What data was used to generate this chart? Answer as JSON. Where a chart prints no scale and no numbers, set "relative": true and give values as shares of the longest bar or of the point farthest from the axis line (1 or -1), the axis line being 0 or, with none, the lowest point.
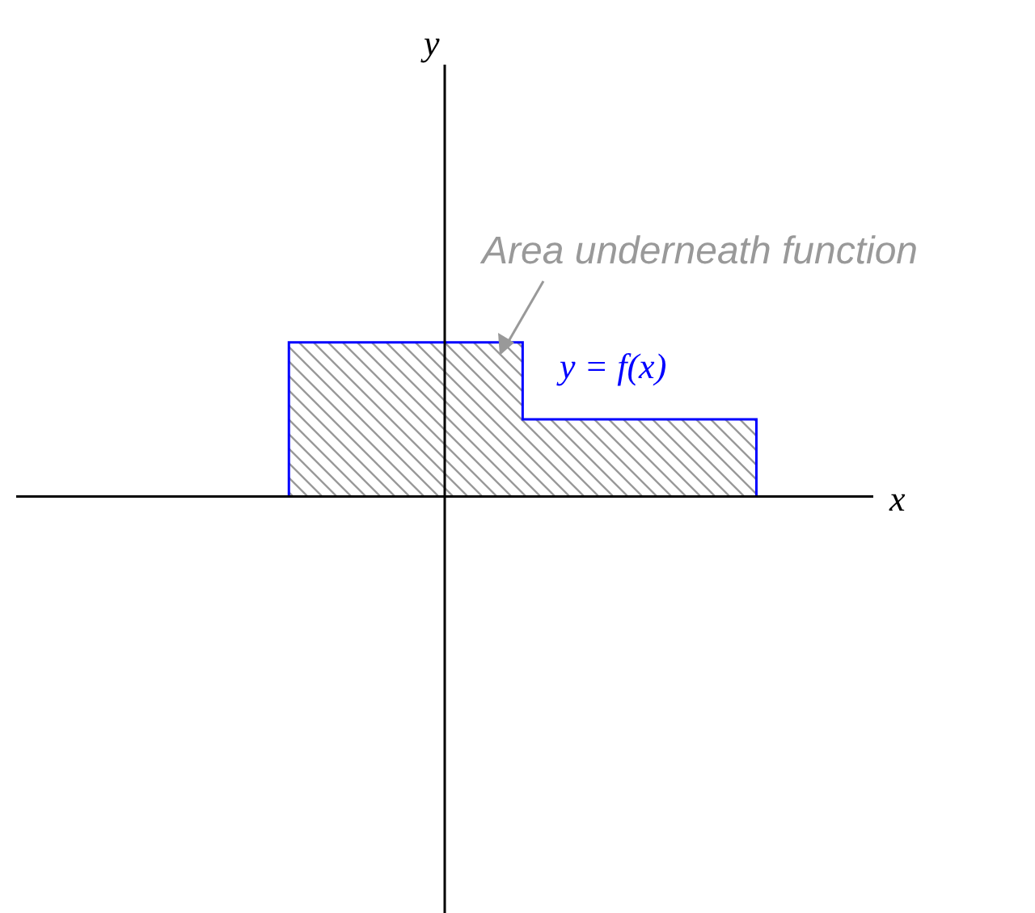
{
  "chart_data": {
    "type": "area",
    "relative": true,
    "xlabel": "x",
    "categories": [
      null,
      null,
      null,
      null,
      null,
      null,
      null,
      null,
      null,
      null,
      null
    ],
    "series": [
      {
        "name": "y = f(x)",
        "color": "#0000ff",
        "values": [
          0,
          0,
          0,
          1,
          1,
          1,
          0.5,
          0.5,
          0.5,
          0,
          0
        ]
      }
    ],
    "annotations": [
      "y",
      "Area underneath function"
    ]
  }
}
